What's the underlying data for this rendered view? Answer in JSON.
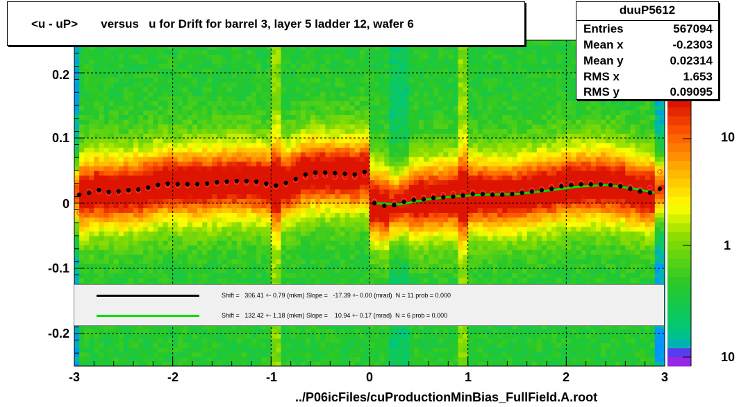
{
  "title": "<u - uP>       versus   u for Drift for barrel 3, layer 5 ladder 12, wafer 6",
  "stats": {
    "name": "duuP5612",
    "rows": [
      {
        "label": "Entries",
        "value": "567094"
      },
      {
        "label": "Mean x",
        "value": "-0.2303"
      },
      {
        "label": "Mean y",
        "value": "0.02314"
      },
      {
        "label": "RMS x",
        "value": "1.653"
      },
      {
        "label": "RMS y",
        "value": "0.09095"
      }
    ]
  },
  "legend": {
    "black_text": "Shift =   306.41 +- 0.79 (mkm) Slope =   -17.39 +- 0.00 (mrad)  N = 11 prob = 0.000",
    "green_text": "Shift =   132.42 +- 1.18 (mkm) Slope =    10.94 +- 0.17 (mrad)  N = 6 prob = 0.000"
  },
  "axes": {
    "x_ticks": [
      "-3",
      "-2",
      "-1",
      "0",
      "1",
      "2",
      "3"
    ],
    "y_ticks": [
      "0.2",
      "0.1",
      "0",
      "-0.1",
      "-0.2"
    ],
    "z_ticks": [
      "10",
      "1",
      "10"
    ]
  },
  "footer": "../P06icFiles/cuProductionMinBias_FullField.A.root",
  "colors": {
    "frame": "#000000",
    "heat_low": "#00c800",
    "heat_mid": "#ffff00",
    "heat_high": "#ff6400",
    "black_profile": "#000000",
    "green_fit": "#00dd00",
    "red_profile": "#ff4040"
  },
  "chart_data": {
    "type": "heatmap",
    "title": "<u - uP>       versus   u for Drift for barrel 3, layer 5 ladder 12, wafer 6",
    "xlabel": "",
    "ylabel": "",
    "xlim": [
      -3,
      3
    ],
    "ylim": [
      -0.25,
      0.25
    ],
    "z_scale": "log",
    "grid": true,
    "x_ticks": [
      -3,
      -2,
      -1,
      0,
      1,
      2,
      3
    ],
    "y_ticks": [
      -0.2,
      -0.1,
      0,
      0.1,
      0.2
    ],
    "series": [
      {
        "style": "black-markers",
        "x": [
          -2.95,
          -2.85,
          -2.75,
          -2.65,
          -2.55,
          -2.45,
          -2.35,
          -2.25,
          -2.15,
          -2.05,
          -1.95,
          -1.85,
          -1.75,
          -1.65,
          -1.55,
          -1.45,
          -1.35,
          -1.25,
          -1.15,
          -1.05,
          -0.95,
          -0.85,
          -0.75,
          -0.65,
          -0.55,
          -0.45,
          -0.35,
          -0.25,
          -0.15,
          -0.05,
          0.05,
          0.15,
          0.25,
          0.35,
          0.45,
          0.55,
          0.65,
          0.75,
          0.85,
          0.95,
          1.05,
          1.15,
          1.25,
          1.35,
          1.45,
          1.55,
          1.65,
          1.75,
          1.85,
          1.95,
          2.05,
          2.15,
          2.25,
          2.35,
          2.45,
          2.55,
          2.65,
          2.75,
          2.85,
          2.95
        ],
        "y": [
          0.013,
          0.016,
          0.02,
          0.017,
          0.018,
          0.02,
          0.021,
          0.024,
          0.028,
          0.03,
          0.029,
          0.029,
          0.029,
          0.03,
          0.032,
          0.033,
          0.034,
          0.034,
          0.033,
          0.03,
          0.027,
          0.031,
          0.037,
          0.044,
          0.047,
          0.047,
          0.046,
          0.045,
          0.044,
          0.048,
          0.0,
          -0.004,
          -0.003,
          0.002,
          0.005,
          0.006,
          0.008,
          0.009,
          0.01,
          0.012,
          0.014,
          0.014,
          0.013,
          0.013,
          0.014,
          0.016,
          0.018,
          0.02,
          0.022,
          0.026,
          0.028,
          0.029,
          0.029,
          0.029,
          0.028,
          0.026,
          0.022,
          0.018,
          0.016,
          0.022
        ]
      },
      {
        "style": "red-open-markers",
        "x": [
          -2.95,
          -2.85,
          -2.75,
          -2.65,
          -2.55,
          -2.45,
          -2.35,
          -2.25,
          -2.15,
          -2.05,
          -1.95,
          -1.85,
          -1.75,
          -1.65,
          -1.55,
          -1.45,
          -1.35,
          -1.25,
          -1.15,
          -1.05,
          -0.95,
          -0.85,
          -0.75,
          -0.65,
          -0.55,
          -0.45,
          -0.35,
          -0.25,
          -0.15,
          -0.05,
          0.05,
          0.15,
          0.25,
          0.35,
          0.45,
          0.55,
          0.65,
          0.75,
          0.85,
          0.95,
          1.05,
          1.15,
          1.25,
          1.35,
          1.45,
          1.55,
          1.65,
          1.75,
          1.85,
          1.95,
          2.05,
          2.15,
          2.25,
          2.35,
          2.45,
          2.55,
          2.65,
          2.75,
          2.85,
          2.95
        ],
        "y": [
          -0.015,
          0.018,
          0.018,
          0.015,
          0.016,
          0.018,
          0.019,
          0.022,
          0.026,
          0.027,
          0.027,
          0.027,
          0.028,
          0.029,
          0.03,
          0.031,
          0.032,
          0.031,
          0.03,
          0.027,
          0.025,
          0.029,
          0.035,
          0.04,
          0.041,
          0.042,
          0.04,
          0.04,
          0.04,
          0.043,
          0.003,
          -0.002,
          0.0,
          0.004,
          0.007,
          0.009,
          0.011,
          0.013,
          0.015,
          0.016,
          0.017,
          0.016,
          0.015,
          0.015,
          0.016,
          0.018,
          0.02,
          0.022,
          0.025,
          0.028,
          0.03,
          0.031,
          0.031,
          0.03,
          0.029,
          0.028,
          0.025,
          0.021,
          0.024,
          0.048
        ]
      },
      {
        "style": "green-fit-line",
        "x": [
          0.05,
          0.3,
          0.6,
          0.9,
          1.2,
          1.5,
          1.8,
          2.1,
          2.4,
          2.7,
          2.9
        ],
        "y": [
          0.0,
          -0.002,
          0.006,
          0.011,
          0.013,
          0.014,
          0.019,
          0.025,
          0.028,
          0.022,
          0.016
        ]
      }
    ]
  }
}
